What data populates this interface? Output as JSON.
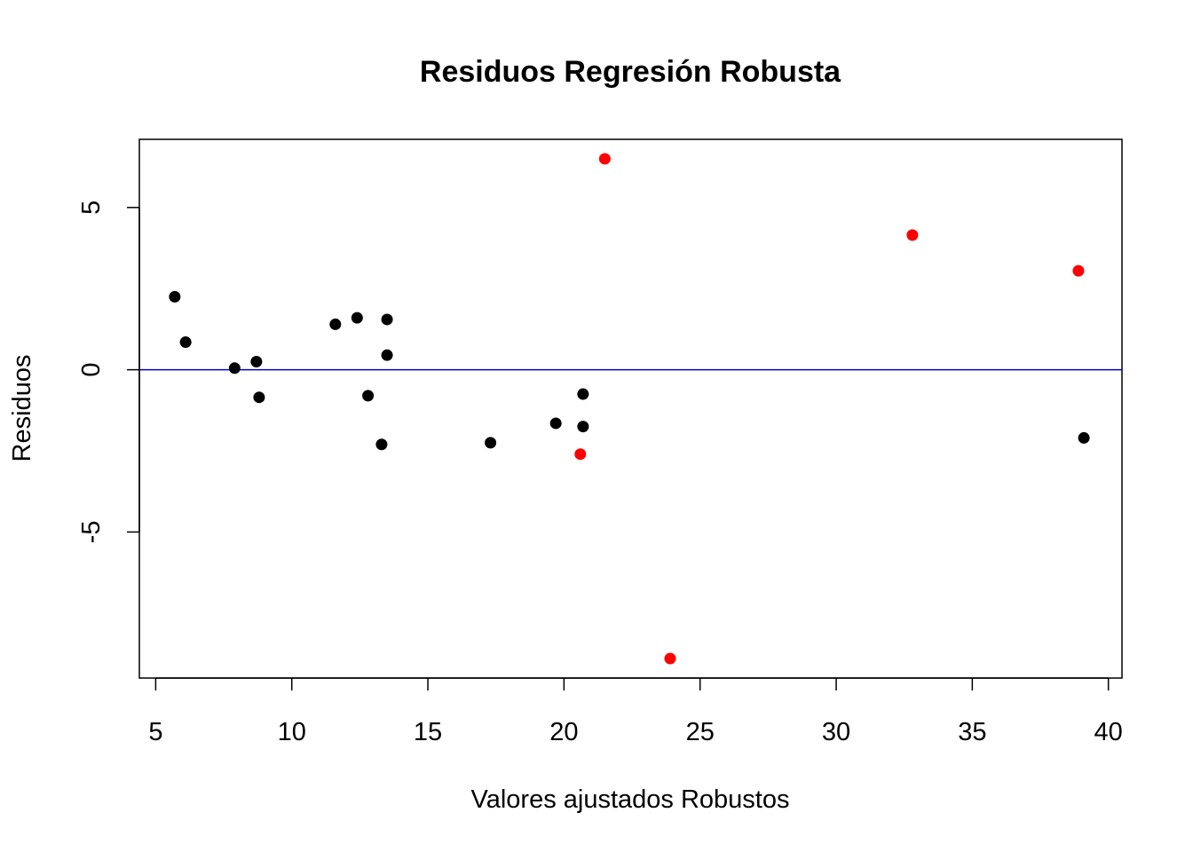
{
  "chart_data": {
    "type": "scatter",
    "title": "Residuos Regresión Robusta",
    "xlabel": "Valores ajustados Robustos",
    "ylabel": "Residuos",
    "xlim": [
      4.4,
      40.5
    ],
    "ylim": [
      -9.5,
      7.1
    ],
    "x_ticks": [
      5,
      10,
      15,
      20,
      25,
      30,
      35,
      40
    ],
    "y_ticks": [
      -5,
      0,
      5
    ],
    "x_tick_labels": [
      "5",
      "10",
      "15",
      "20",
      "25",
      "30",
      "35",
      "40"
    ],
    "y_tick_labels": [
      "-5",
      "0",
      "5"
    ],
    "reference_line": {
      "y": 0,
      "color": "#0000cd"
    },
    "grid": false,
    "legend": "none",
    "series": [
      {
        "color": "#000000",
        "points": [
          {
            "x": 5.7,
            "y": 2.25
          },
          {
            "x": 6.1,
            "y": 0.85
          },
          {
            "x": 7.9,
            "y": 0.05
          },
          {
            "x": 8.7,
            "y": 0.25
          },
          {
            "x": 8.8,
            "y": -0.85
          },
          {
            "x": 11.6,
            "y": 1.4
          },
          {
            "x": 12.4,
            "y": 1.6
          },
          {
            "x": 12.8,
            "y": -0.8
          },
          {
            "x": 13.3,
            "y": -2.3
          },
          {
            "x": 13.5,
            "y": 1.55
          },
          {
            "x": 13.5,
            "y": 0.45
          },
          {
            "x": 17.3,
            "y": -2.25
          },
          {
            "x": 19.7,
            "y": -1.65
          },
          {
            "x": 20.7,
            "y": -0.75
          },
          {
            "x": 20.7,
            "y": -1.75
          },
          {
            "x": 39.1,
            "y": -2.1
          }
        ]
      },
      {
        "color": "#ff0000",
        "points": [
          {
            "x": 21.5,
            "y": 6.5
          },
          {
            "x": 20.6,
            "y": -2.6
          },
          {
            "x": 23.9,
            "y": -8.9
          },
          {
            "x": 32.8,
            "y": 4.15
          },
          {
            "x": 38.9,
            "y": 3.05
          }
        ]
      }
    ]
  }
}
